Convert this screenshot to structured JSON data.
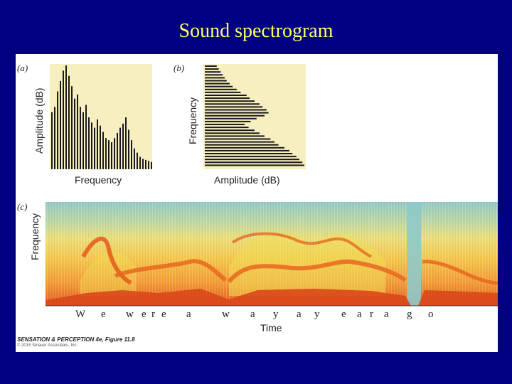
{
  "slide_title": "Sound spectrogram",
  "panel_a": {
    "label": "(a)",
    "ylabel": "Amplitude (dB)",
    "xlabel": "Frequency",
    "values": [
      55,
      60,
      75,
      85,
      95,
      100,
      90,
      80,
      68,
      72,
      60,
      55,
      62,
      50,
      45,
      40,
      48,
      42,
      36,
      30,
      28,
      26,
      30,
      35,
      40,
      44,
      50,
      38,
      28,
      20,
      16,
      12,
      10,
      9,
      8,
      7
    ]
  },
  "panel_b": {
    "label": "(b)",
    "ylabel": "Frequency",
    "xlabel": "Amplitude (dB)",
    "values": [
      12,
      14,
      16,
      18,
      20,
      22,
      25,
      28,
      32,
      36,
      42,
      45,
      50,
      55,
      58,
      62,
      64,
      60,
      52,
      46,
      40,
      44,
      50,
      55,
      60,
      66,
      70,
      74,
      80,
      85,
      88,
      92,
      95,
      98,
      100
    ]
  },
  "panel_c": {
    "label": "(c)",
    "ylabel": "Frequency",
    "xlabel": "Time",
    "syllables": [
      "W",
      "e",
      "w",
      "e",
      "r",
      "e",
      "a",
      "w",
      "a",
      "y",
      "a",
      "y",
      "e",
      "a",
      "r",
      "a",
      "g",
      "o"
    ]
  },
  "caption": {
    "line1": "SENSATION & PERCEPTION 4e, Figure 11.8",
    "line2": "© 2015 Sinauer Associates, Inc."
  },
  "colors": {
    "background": "#000080",
    "title": "#ffff66",
    "panel_fill": "#f7efc0",
    "bars": "#1a1a1a"
  }
}
